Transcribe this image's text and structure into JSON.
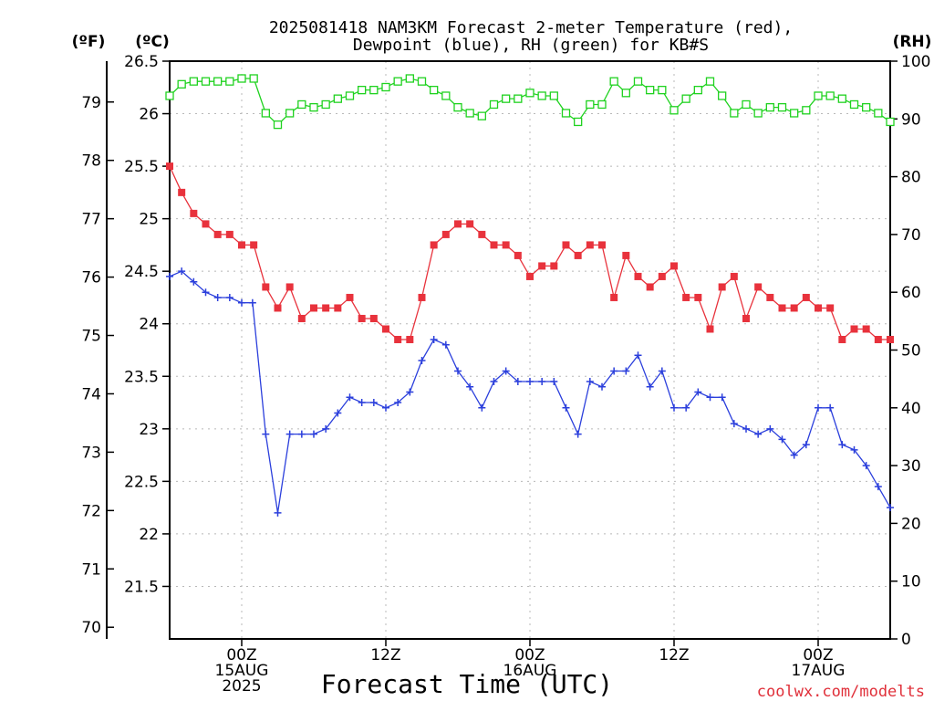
{
  "chart_data": {
    "type": "line",
    "title_line1": "2025081418 NAM3KM Forecast 2-meter Temperature (red),",
    "title_line2": "Dewpoint (blue), RH (green) for KB#S",
    "xlabel": "Forecast Time (UTC)",
    "credit": "coolwx.com/modelts",
    "units": {
      "f": "(ºF)",
      "c": "(ºC)",
      "rh": "(RH)"
    },
    "x_unit": "forecast hour",
    "xlim": [
      -6,
      54
    ],
    "x_ticks": [
      {
        "x": 0,
        "l1": "00Z",
        "l2": "15AUG",
        "l3": "2025"
      },
      {
        "x": 12,
        "l1": "12Z",
        "l2": "",
        "l3": ""
      },
      {
        "x": 24,
        "l1": "00Z",
        "l2": "16AUG",
        "l3": ""
      },
      {
        "x": 36,
        "l1": "12Z",
        "l2": "",
        "l3": ""
      },
      {
        "x": 48,
        "l1": "00Z",
        "l2": "17AUG",
        "l3": ""
      }
    ],
    "y_celsius": {
      "range": [
        21,
        26.5
      ],
      "ticks": [
        21.5,
        22,
        22.5,
        23,
        23.5,
        24,
        24.5,
        25,
        25.5,
        26,
        26.5
      ]
    },
    "y_fahrenheit": {
      "ticks": [
        70,
        71,
        72,
        73,
        74,
        75,
        76,
        77,
        78,
        79
      ]
    },
    "y_rh": {
      "range": [
        0,
        100
      ],
      "ticks": [
        0,
        10,
        20,
        30,
        40,
        50,
        60,
        70,
        80,
        90,
        100
      ]
    },
    "grid": true,
    "colors": {
      "temperature": "#e8323c",
      "dewpoint": "#2b3fdc",
      "rh": "#1fd21f"
    },
    "series": [
      {
        "name": "Temperature (red)",
        "axis": "celsius",
        "marker": "filled-square",
        "x": [
          -6,
          -5,
          -4,
          -3,
          -2,
          -1,
          0,
          1,
          2,
          3,
          4,
          5,
          6,
          7,
          8,
          9,
          10,
          11,
          12,
          13,
          14,
          15,
          16,
          17,
          18,
          19,
          20,
          21,
          22,
          23,
          24,
          25,
          26,
          27,
          28,
          29,
          30,
          31,
          32,
          33,
          34,
          35,
          36,
          37,
          38,
          39,
          40,
          41,
          42,
          43,
          44,
          45,
          46,
          47,
          48,
          49,
          50,
          51,
          52,
          53,
          54
        ],
        "values": [
          25.5,
          25.25,
          25.05,
          24.95,
          24.85,
          24.85,
          24.75,
          24.75,
          24.35,
          24.15,
          24.35,
          24.05,
          24.15,
          24.15,
          24.15,
          24.25,
          24.05,
          24.05,
          23.95,
          23.85,
          23.85,
          24.25,
          24.75,
          24.85,
          24.95,
          24.95,
          24.85,
          24.75,
          24.75,
          24.65,
          24.45,
          24.55,
          24.55,
          24.75,
          24.65,
          24.75,
          24.75,
          24.25,
          24.65,
          24.45,
          24.35,
          24.45,
          24.55,
          24.25,
          24.25,
          23.95,
          24.35,
          24.45,
          24.05,
          24.35,
          24.25,
          24.15,
          24.15,
          24.25,
          24.15,
          24.15,
          23.85,
          23.95,
          23.95,
          23.85,
          23.85
        ]
      },
      {
        "name": "Dewpoint (blue)",
        "axis": "celsius",
        "marker": "plus",
        "x": [
          -6,
          -5,
          -4,
          -3,
          -2,
          -1,
          0,
          0.9,
          2,
          3,
          4,
          5,
          6,
          7,
          8,
          9,
          10,
          11,
          12,
          13,
          14,
          15,
          16,
          17,
          18,
          19,
          20,
          21,
          22,
          23,
          24,
          25,
          26,
          27,
          28,
          29,
          30,
          31,
          32,
          33,
          34,
          35,
          36,
          37,
          38,
          39,
          40,
          41,
          42,
          43,
          44,
          45,
          46,
          47,
          48,
          49,
          50,
          51,
          52,
          53,
          54
        ],
        "values": [
          24.45,
          24.5,
          24.4,
          24.3,
          24.25,
          24.25,
          24.2,
          24.2,
          22.95,
          22.2,
          22.95,
          22.95,
          22.95,
          23.0,
          23.15,
          23.3,
          23.25,
          23.25,
          23.2,
          23.25,
          23.35,
          23.65,
          23.85,
          23.8,
          23.55,
          23.4,
          23.2,
          23.45,
          23.55,
          23.45,
          23.45,
          23.45,
          23.45,
          23.2,
          22.95,
          23.45,
          23.4,
          23.55,
          23.55,
          23.7,
          23.4,
          23.55,
          23.2,
          23.2,
          23.35,
          23.3,
          23.3,
          23.05,
          23.0,
          22.95,
          23.0,
          22.9,
          22.75,
          22.85,
          23.2,
          23.2,
          22.85,
          22.8,
          22.65,
          22.45,
          22.25
        ]
      },
      {
        "name": "RH (green)",
        "axis": "rh",
        "marker": "hollow-square",
        "x": [
          -6,
          -5,
          -4,
          -3,
          -2,
          -1,
          0,
          1,
          2,
          3,
          4,
          5,
          6,
          7,
          8,
          9,
          10,
          11,
          12,
          13,
          14,
          15,
          16,
          17,
          18,
          19,
          20,
          21,
          22,
          23,
          24,
          25,
          26,
          27,
          28,
          29,
          30,
          31,
          32,
          33,
          34,
          35,
          36,
          37,
          38,
          39,
          40,
          41,
          42,
          43,
          44,
          45,
          46,
          47,
          48,
          49,
          50,
          51,
          52,
          53,
          54
        ],
        "values": [
          94,
          96,
          96.5,
          96.5,
          96.5,
          96.5,
          97,
          97,
          91,
          89,
          91,
          92.5,
          92,
          92.5,
          93.5,
          94,
          95,
          95,
          95.5,
          96.5,
          97,
          96.5,
          95,
          94,
          92,
          91,
          90.5,
          92.5,
          93.5,
          93.5,
          94.5,
          94,
          94,
          91,
          89.5,
          92.5,
          92.5,
          96.5,
          94.5,
          96.5,
          95,
          95,
          91.5,
          93.5,
          95,
          96.5,
          94,
          91,
          92.5,
          91,
          92,
          92,
          91,
          91.5,
          94,
          94,
          93.5,
          92.5,
          92,
          91,
          89.5
        ]
      }
    ]
  }
}
